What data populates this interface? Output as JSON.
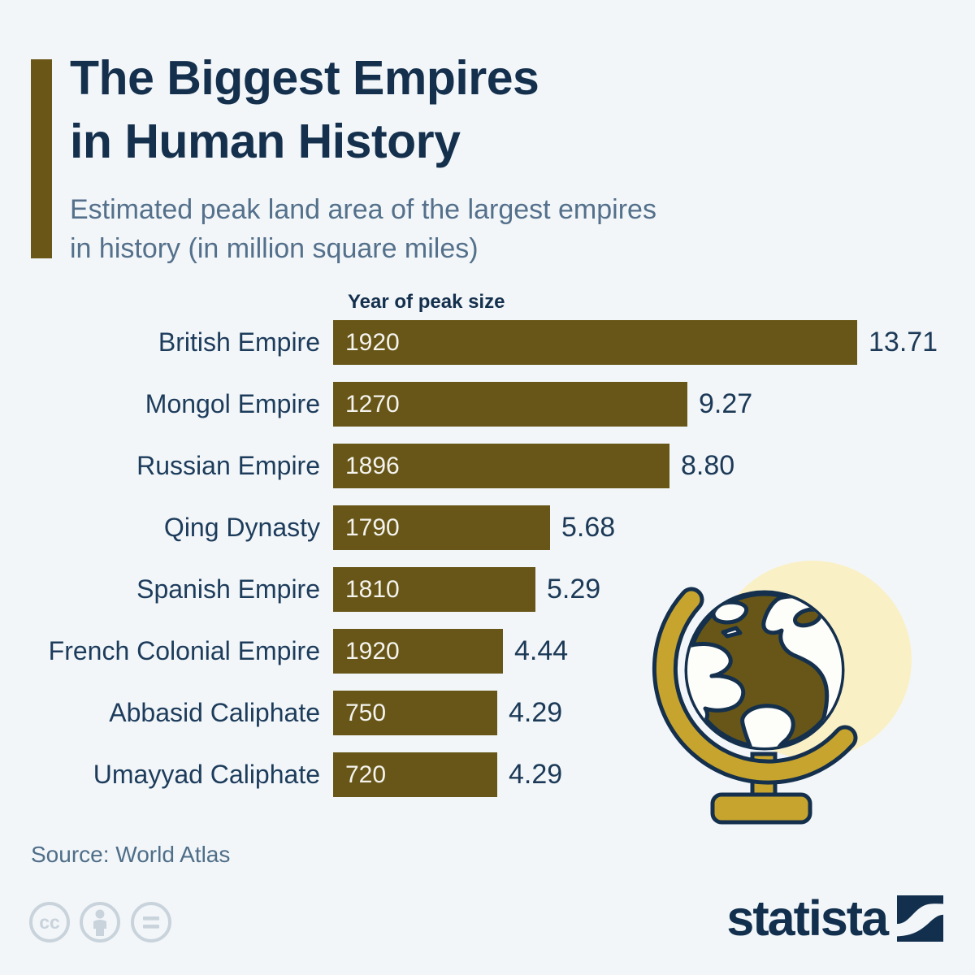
{
  "header": {
    "title_line1": "The Biggest Empires",
    "title_line2": "in Human History",
    "subtitle_line1": "Estimated peak land area of the largest empires",
    "subtitle_line2": "in history (in million square miles)"
  },
  "chart_data": {
    "type": "bar",
    "orientation": "horizontal",
    "title": "The Biggest Empires in Human History",
    "subtitle": "Estimated peak land area of the largest empires in history (in million square miles)",
    "value_column_header": "Year of peak size",
    "unit": "million square miles",
    "xlim": [
      0,
      14
    ],
    "max_value": 13.71,
    "grid": false,
    "legend": false,
    "bars": [
      {
        "category": "British Empire",
        "year": "1920",
        "value": 13.71,
        "value_display": "13.71"
      },
      {
        "category": "Mongol Empire",
        "year": "1270",
        "value": 9.27,
        "value_display": "9.27"
      },
      {
        "category": "Russian Empire",
        "year": "1896",
        "value": 8.8,
        "value_display": "8.80"
      },
      {
        "category": "Qing Dynasty",
        "year": "1790",
        "value": 5.68,
        "value_display": "5.68"
      },
      {
        "category": "Spanish Empire",
        "year": "1810",
        "value": 5.29,
        "value_display": "5.29"
      },
      {
        "category": "French Colonial Empire",
        "year": "1920",
        "value": 4.44,
        "value_display": "4.44"
      },
      {
        "category": "Abbasid Caliphate",
        "year": "750",
        "value": 4.29,
        "value_display": "4.29"
      },
      {
        "category": "Umayyad Caliphate",
        "year": "720",
        "value": 4.29,
        "value_display": "4.29"
      }
    ]
  },
  "footer": {
    "source": "Source: World Atlas",
    "license_icons": [
      "cc-icon",
      "attribution-icon",
      "no-derivatives-icon"
    ],
    "brand": "statista"
  },
  "colors": {
    "navy": "#14304d",
    "slate": "#54708b",
    "olive": "#6a5616",
    "bar": "#675617",
    "gold": "#c7a42d",
    "pale-circle": "#faf0c6",
    "background": "#f2f6f9",
    "cc-gray": "#c9d3db"
  }
}
